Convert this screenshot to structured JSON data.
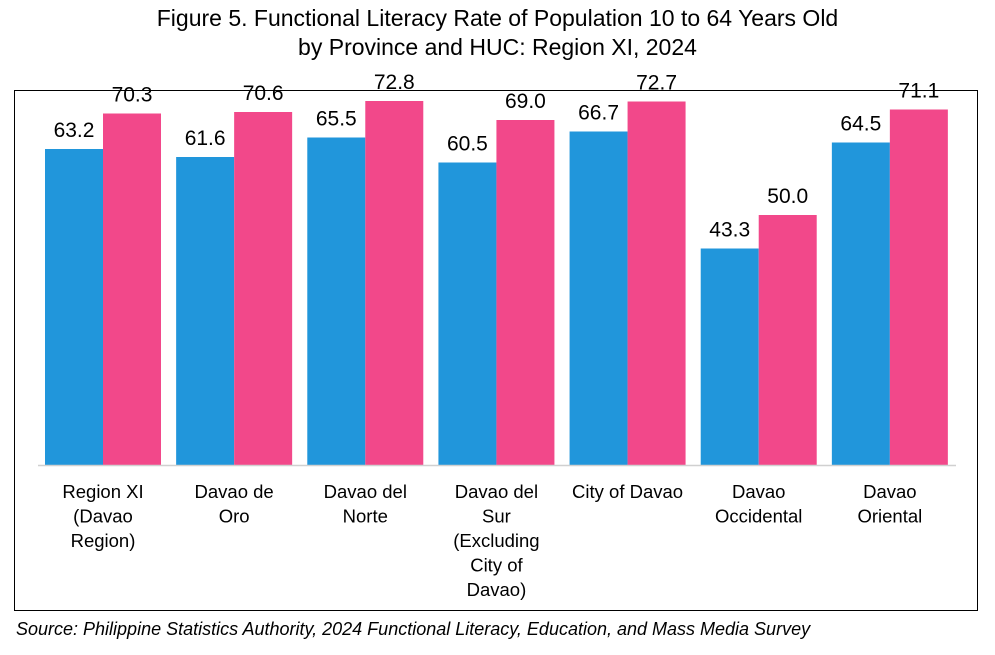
{
  "title_line1": "Figure 5. Functional Literacy Rate of Population 10 to 64 Years Old",
  "title_line2": "by Province and HUC: Region XI, 2024",
  "source": "Source: Philippine Statistics Authority, 2024 Functional Literacy, Education, and Mass Media Survey",
  "colors": {
    "series1": "#2196db",
    "series2": "#f2488a",
    "axis": "#d0d0d0"
  },
  "chart_data": {
    "type": "bar",
    "title": "Figure 5. Functional Literacy Rate of Population 10 to 64 Years Old by Province and HUC: Region XI, 2024",
    "categories": [
      [
        "Region XI",
        "(Davao",
        "Region)"
      ],
      [
        "Davao de",
        "Oro"
      ],
      [
        "Davao del",
        "Norte"
      ],
      [
        "Davao del",
        "Sur",
        "(Excluding",
        "City of",
        "Davao)"
      ],
      [
        "City of Davao"
      ],
      [
        "Davao",
        "Occidental"
      ],
      [
        "Davao",
        "Oriental"
      ]
    ],
    "series": [
      {
        "values": [
          63.2,
          61.6,
          65.5,
          60.5,
          66.7,
          43.3,
          64.5
        ]
      },
      {
        "values": [
          70.3,
          70.6,
          72.8,
          69.0,
          72.7,
          50.0,
          71.1
        ]
      }
    ],
    "ylim": [
      0,
      85
    ],
    "grid": false,
    "legend": "none"
  }
}
